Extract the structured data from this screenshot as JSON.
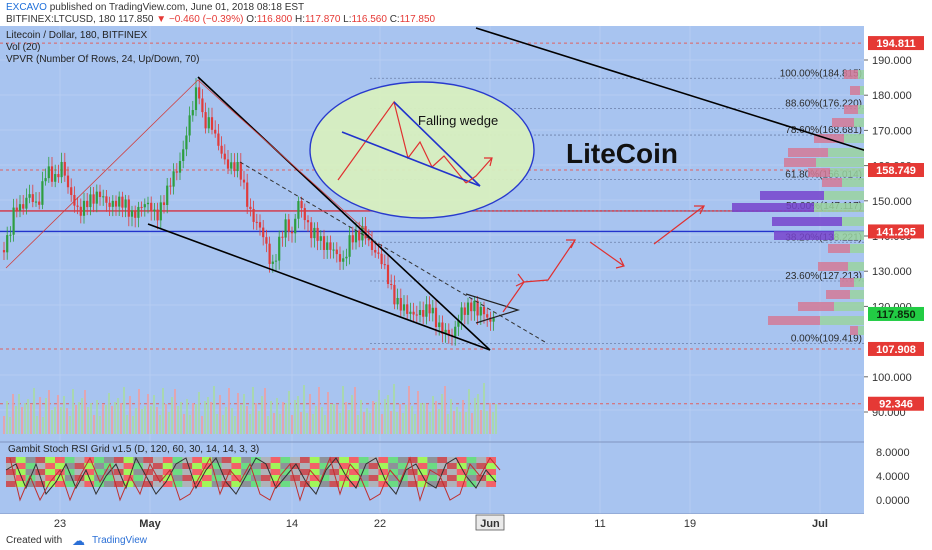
{
  "header": {
    "author": "EXCAVO",
    "published": "published on TradingView.com, June 01, 2018 08:18 EST",
    "symbol": "BITFINEX:LTCUSD, 180",
    "last": "117.850",
    "change": "▼ −0.460 (−0.39%)",
    "o_label": "O:",
    "o_val": "116.800",
    "h_label": "H:",
    "h_val": "117.870",
    "l_label": "L:",
    "l_val": "116.560",
    "c_label": "C:",
    "c_val": "117.850"
  },
  "legend": {
    "line1": "Litecoin / Dollar, 180, BITFINEX",
    "line2": "Vol (20)",
    "line3": "VPVR (Number Of Rows, 24, Up/Down, 70)",
    "stoch": "Gambit Stoch RSI Grid v1.5 (D, 120, 60, 30, 14, 14, 3, 3)"
  },
  "annotations": {
    "wedge": "Falling wedge",
    "coin": "LiteCoin"
  },
  "footer": {
    "created": "Created with",
    "brand": "TradingView"
  },
  "colors": {
    "background": "#a8c4f0",
    "up": "#2e9e3f",
    "down": "#e03b3b",
    "trend": "#000000",
    "ellipse_fill": "#d8f0c0",
    "ellipse_stroke": "#2233cc",
    "price_label": "#e53935",
    "current_label": "#22cc44",
    "fib_line": "#6b7fa8",
    "vpvr_up": "#9ad4a0",
    "vpvr_down": "#d47a96",
    "vpvr_blue": "#7744cc"
  },
  "chart_data": {
    "type": "candlestick",
    "x_labels": [
      "23",
      "May",
      "14",
      "22",
      "Jun",
      "11",
      "19",
      "Jul"
    ],
    "y_ticks": [
      "190.000",
      "180.000",
      "170.000",
      "160.000",
      "150.000",
      "140.000",
      "130.000",
      "120.000",
      "100.000",
      "90.000"
    ],
    "price_labels": [
      {
        "text": "194.811",
        "value": 194.811
      },
      {
        "text": "158.749",
        "value": 158.749
      },
      {
        "text": "141.295",
        "value": 141.295
      },
      {
        "text": "117.850",
        "value": 117.85
      },
      {
        "text": "107.908",
        "value": 107.908
      },
      {
        "text": "92.346",
        "value": 92.346
      }
    ],
    "fib_levels": [
      {
        "text": "100.00%(184.815)",
        "value": 184.815
      },
      {
        "text": "88.60%(176.220)",
        "value": 176.22
      },
      {
        "text": "78.60%(168.681)",
        "value": 168.681
      },
      {
        "text": "61.80%(156.014)",
        "value": 156.014
      },
      {
        "text": "50.00%(147.117)",
        "value": 147.117
      },
      {
        "text": "38.20%(138.221)",
        "value": 138.221
      },
      {
        "text": "23.60%(127.213)",
        "value": 127.213
      },
      {
        "text": "0.00%(109.419)",
        "value": 109.419
      }
    ],
    "stoch_ticks": [
      "8.0000",
      "4.0000",
      "0.0000"
    ],
    "price_path": [
      [
        0,
        132
      ],
      [
        8,
        140
      ],
      [
        15,
        150
      ],
      [
        22,
        146
      ],
      [
        30,
        152
      ],
      [
        38,
        150
      ],
      [
        46,
        157
      ],
      [
        54,
        156
      ],
      [
        62,
        162
      ],
      [
        70,
        150
      ],
      [
        78,
        147
      ],
      [
        86,
        151
      ],
      [
        94,
        149
      ],
      [
        102,
        152
      ],
      [
        110,
        150
      ],
      [
        118,
        148
      ],
      [
        126,
        149
      ],
      [
        134,
        147
      ],
      [
        142,
        147
      ],
      [
        150,
        149
      ],
      [
        158,
        147
      ],
      [
        166,
        150
      ],
      [
        174,
        158
      ],
      [
        182,
        164
      ],
      [
        188,
        170
      ],
      [
        194,
        177
      ],
      [
        198,
        184
      ],
      [
        203,
        174
      ],
      [
        210,
        172
      ],
      [
        216,
        166
      ],
      [
        224,
        163
      ],
      [
        232,
        160
      ],
      [
        240,
        157
      ],
      [
        248,
        150
      ],
      [
        256,
        144
      ],
      [
        264,
        138
      ],
      [
        272,
        132
      ],
      [
        278,
        138
      ],
      [
        286,
        142
      ],
      [
        292,
        140
      ],
      [
        298,
        152
      ],
      [
        304,
        146
      ],
      [
        310,
        139
      ],
      [
        318,
        141
      ],
      [
        326,
        138
      ],
      [
        334,
        134
      ],
      [
        342,
        133
      ],
      [
        350,
        140
      ],
      [
        358,
        138
      ],
      [
        364,
        142
      ],
      [
        370,
        139
      ],
      [
        376,
        135
      ],
      [
        382,
        131
      ],
      [
        388,
        128
      ],
      [
        394,
        124
      ],
      [
        400,
        120
      ],
      [
        406,
        117
      ],
      [
        412,
        118
      ],
      [
        418,
        120
      ],
      [
        424,
        118
      ],
      [
        430,
        118
      ],
      [
        436,
        116
      ],
      [
        442,
        115
      ],
      [
        448,
        112
      ],
      [
        452,
        110
      ],
      [
        456,
        113
      ],
      [
        460,
        119
      ],
      [
        466,
        121
      ],
      [
        472,
        120
      ],
      [
        478,
        117
      ],
      [
        484,
        119
      ],
      [
        490,
        117
      ],
      [
        495,
        118
      ]
    ],
    "volume_pattern": [
      3,
      5,
      2,
      6,
      4,
      8,
      3,
      5,
      7,
      4,
      9,
      3,
      6,
      2,
      5,
      8,
      4,
      3,
      7,
      5,
      6,
      4,
      3,
      8,
      5,
      4,
      6,
      9,
      3,
      5
    ],
    "stoch_series": [
      [
        0,
        5
      ],
      [
        10,
        6
      ],
      [
        20,
        2
      ],
      [
        30,
        6
      ],
      [
        40,
        1
      ],
      [
        50,
        3
      ],
      [
        60,
        6
      ],
      [
        70,
        2
      ],
      [
        80,
        5
      ],
      [
        90,
        1
      ],
      [
        100,
        4
      ],
      [
        110,
        6
      ],
      [
        120,
        2
      ],
      [
        130,
        7
      ],
      [
        140,
        4
      ],
      [
        150,
        1
      ],
      [
        160,
        3
      ],
      [
        170,
        6
      ],
      [
        180,
        7
      ],
      [
        190,
        2
      ],
      [
        200,
        5
      ],
      [
        210,
        7
      ],
      [
        220,
        3
      ],
      [
        230,
        1
      ],
      [
        240,
        4
      ],
      [
        250,
        7
      ],
      [
        260,
        6
      ],
      [
        270,
        2
      ],
      [
        280,
        4
      ],
      [
        290,
        6
      ],
      [
        300,
        3
      ],
      [
        310,
        1
      ],
      [
        320,
        5
      ],
      [
        330,
        7
      ],
      [
        340,
        4
      ],
      [
        350,
        2
      ],
      [
        360,
        6
      ],
      [
        370,
        7
      ],
      [
        380,
        3
      ],
      [
        390,
        1
      ],
      [
        400,
        5
      ],
      [
        410,
        6
      ],
      [
        420,
        3
      ],
      [
        430,
        2
      ],
      [
        440,
        6
      ],
      [
        450,
        7
      ],
      [
        460,
        4
      ],
      [
        470,
        2
      ],
      [
        480,
        5
      ],
      [
        490,
        3
      ]
    ]
  }
}
